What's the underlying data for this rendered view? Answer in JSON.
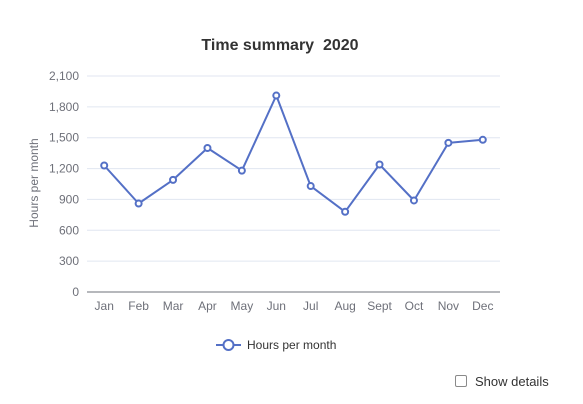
{
  "chart_data": {
    "type": "line",
    "title": "Time summary  2020",
    "xlabel": "",
    "ylabel": "Hours per month",
    "categories": [
      "Jan",
      "Feb",
      "Mar",
      "Apr",
      "May",
      "Jun",
      "Jul",
      "Aug",
      "Sept",
      "Oct",
      "Nov",
      "Dec"
    ],
    "series": [
      {
        "name": "Hours per month",
        "values": [
          1230,
          860,
          1090,
          1400,
          1180,
          1910,
          1030,
          780,
          1240,
          890,
          1450,
          1480
        ],
        "color": "#5470c6"
      }
    ],
    "ylim": [
      0,
      2100
    ],
    "yticks": [
      {
        "value": 0,
        "label": "0"
      },
      {
        "value": 300,
        "label": "300"
      },
      {
        "value": 600,
        "label": "600"
      },
      {
        "value": 900,
        "label": "900"
      },
      {
        "value": 1200,
        "label": "1,200"
      },
      {
        "value": 1500,
        "label": "1,500"
      },
      {
        "value": 1800,
        "label": "1,800"
      },
      {
        "value": 2100,
        "label": "2,100"
      }
    ],
    "grid": true,
    "legend": "bottom-center"
  },
  "controls": {
    "show_details_label": "Show details",
    "show_details_checked": false
  }
}
